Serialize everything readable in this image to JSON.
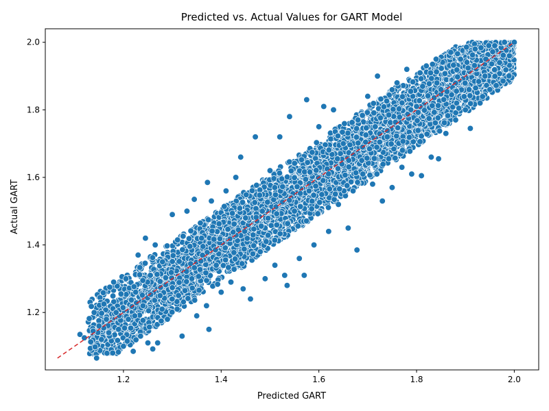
{
  "chart_data": {
    "type": "scatter",
    "title": "Predicted vs. Actual Values for GART Model",
    "xlabel": "Predicted GART",
    "ylabel": "Actual GART",
    "xlim": [
      1.04,
      2.05
    ],
    "ylim": [
      1.03,
      2.04
    ],
    "x_ticks": [
      1.2,
      1.4,
      1.6,
      1.8,
      2.0
    ],
    "y_ticks": [
      1.2,
      1.4,
      1.6,
      1.8,
      2.0
    ],
    "x_tick_labels": [
      "1.2",
      "1.4",
      "1.6",
      "1.8",
      "2.0"
    ],
    "y_tick_labels": [
      "1.2",
      "1.4",
      "1.6",
      "1.8",
      "2.0"
    ],
    "grid": false,
    "legend": null,
    "marker_color": "#1f77b4",
    "marker_edge_color": "#ffffff",
    "reference_line": {
      "style": "dashed",
      "color": "#d62728",
      "points": [
        [
          1.065,
          1.065
        ],
        [
          2.0,
          2.0
        ]
      ]
    },
    "series": [
      {
        "points": [
          [
            1.111,
            1.135
          ],
          [
            1.12,
            1.125
          ],
          [
            1.128,
            1.172
          ],
          [
            1.13,
            1.182
          ],
          [
            1.133,
            1.113
          ],
          [
            1.138,
            1.145
          ],
          [
            1.14,
            1.2
          ],
          [
            1.142,
            1.098
          ],
          [
            1.145,
            1.065
          ],
          [
            1.15,
            1.16
          ],
          [
            1.155,
            1.12
          ],
          [
            1.16,
            1.225
          ],
          [
            1.165,
            1.18
          ],
          [
            1.17,
            1.14
          ],
          [
            1.172,
            1.275
          ],
          [
            1.175,
            1.09
          ],
          [
            1.178,
            1.08
          ],
          [
            1.18,
            1.29
          ],
          [
            1.185,
            1.2
          ],
          [
            1.19,
            1.15
          ],
          [
            1.195,
            1.255
          ],
          [
            1.2,
            1.1
          ],
          [
            1.205,
            1.3
          ],
          [
            1.21,
            1.18
          ],
          [
            1.22,
            1.085
          ],
          [
            1.225,
            1.26
          ],
          [
            1.23,
            1.37
          ],
          [
            1.235,
            1.13
          ],
          [
            1.24,
            1.22
          ],
          [
            1.245,
            1.42
          ],
          [
            1.25,
            1.11
          ],
          [
            1.255,
            1.31
          ],
          [
            1.26,
            1.092
          ],
          [
            1.265,
            1.4
          ],
          [
            1.27,
            1.11
          ],
          [
            1.275,
            1.25
          ],
          [
            1.28,
            1.35
          ],
          [
            1.29,
            1.18
          ],
          [
            1.3,
            1.49
          ],
          [
            1.31,
            1.21
          ],
          [
            1.32,
            1.13
          ],
          [
            1.33,
            1.5
          ],
          [
            1.34,
            1.3
          ],
          [
            1.345,
            1.535
          ],
          [
            1.35,
            1.19
          ],
          [
            1.36,
            1.42
          ],
          [
            1.37,
            1.22
          ],
          [
            1.372,
            1.585
          ],
          [
            1.375,
            1.15
          ],
          [
            1.38,
            1.53
          ],
          [
            1.39,
            1.34
          ],
          [
            1.4,
            1.26
          ],
          [
            1.41,
            1.56
          ],
          [
            1.42,
            1.29
          ],
          [
            1.43,
            1.6
          ],
          [
            1.44,
            1.66
          ],
          [
            1.445,
            1.27
          ],
          [
            1.45,
            1.48
          ],
          [
            1.46,
            1.24
          ],
          [
            1.47,
            1.72
          ],
          [
            1.48,
            1.38
          ],
          [
            1.49,
            1.3
          ],
          [
            1.5,
            1.62
          ],
          [
            1.51,
            1.34
          ],
          [
            1.52,
            1.72
          ],
          [
            1.53,
            1.31
          ],
          [
            1.535,
            1.28
          ],
          [
            1.54,
            1.78
          ],
          [
            1.55,
            1.5
          ],
          [
            1.56,
            1.36
          ],
          [
            1.57,
            1.31
          ],
          [
            1.575,
            1.83
          ],
          [
            1.58,
            1.56
          ],
          [
            1.59,
            1.4
          ],
          [
            1.6,
            1.75
          ],
          [
            1.61,
            1.81
          ],
          [
            1.62,
            1.44
          ],
          [
            1.63,
            1.8
          ],
          [
            1.64,
            1.52
          ],
          [
            1.65,
            1.7
          ],
          [
            1.66,
            1.45
          ],
          [
            1.67,
            1.56
          ],
          [
            1.678,
            1.385
          ],
          [
            1.68,
            1.77
          ],
          [
            1.69,
            1.61
          ],
          [
            1.7,
            1.84
          ],
          [
            1.71,
            1.58
          ],
          [
            1.72,
            1.9
          ],
          [
            1.73,
            1.53
          ],
          [
            1.74,
            1.72
          ],
          [
            1.75,
            1.57
          ],
          [
            1.76,
            1.88
          ],
          [
            1.77,
            1.63
          ],
          [
            1.78,
            1.92
          ],
          [
            1.79,
            1.61
          ],
          [
            1.8,
            1.81
          ],
          [
            1.81,
            1.605
          ],
          [
            1.82,
            1.93
          ],
          [
            1.83,
            1.66
          ],
          [
            1.84,
            1.95
          ],
          [
            1.845,
            1.655
          ],
          [
            1.85,
            1.86
          ],
          [
            1.86,
            1.73
          ],
          [
            1.87,
            1.97
          ],
          [
            1.88,
            1.77
          ],
          [
            1.89,
            1.95
          ],
          [
            1.9,
            1.8
          ],
          [
            1.91,
            1.745
          ],
          [
            1.92,
            1.98
          ],
          [
            1.93,
            1.82
          ],
          [
            1.94,
            1.9
          ],
          [
            1.95,
            1.86
          ],
          [
            1.96,
            1.99
          ],
          [
            1.97,
            1.94
          ],
          [
            1.98,
            2.0
          ],
          [
            1.99,
            1.96
          ],
          [
            2.0,
            2.0
          ]
        ]
      }
    ],
    "cloud": {
      "x_range": [
        1.13,
        2.0
      ],
      "y_max": 2.0,
      "upper_offset": 0.11,
      "lower_offset": 0.11,
      "n_points": 5500,
      "seed": 7
    }
  }
}
